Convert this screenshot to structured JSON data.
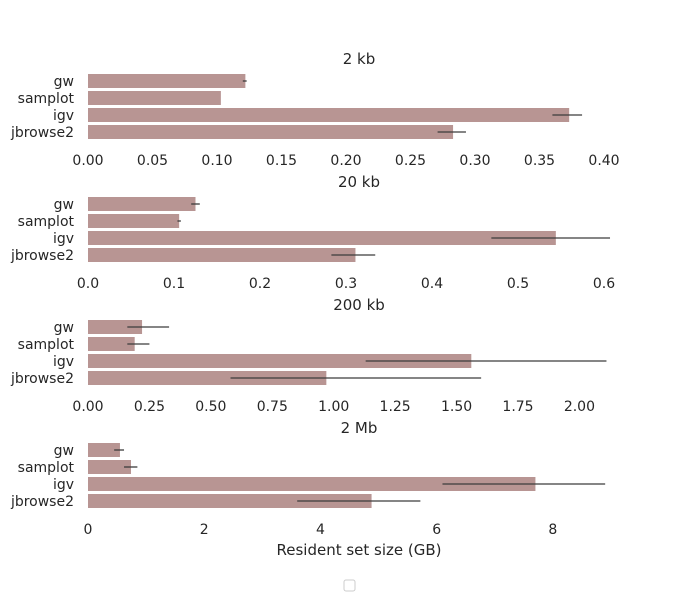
{
  "chart_data": [
    {
      "type": "bar",
      "orientation": "horizontal",
      "title": "2 kb",
      "categories": [
        "gw",
        "samplot",
        "igv",
        "jbrowse2"
      ],
      "values": [
        0.122,
        0.103,
        0.373,
        0.283
      ],
      "error": [
        [
          0.12,
          0.123
        ],
        [
          0.103,
          0.103
        ],
        [
          0.36,
          0.383
        ],
        [
          0.271,
          0.293
        ]
      ],
      "xlim": [
        0,
        0.4
      ],
      "xticks": [
        "0.00",
        "0.05",
        "0.10",
        "0.15",
        "0.20",
        "0.25",
        "0.30",
        "0.35",
        "0.40"
      ],
      "xtick_values": [
        0,
        0.05,
        0.1,
        0.15,
        0.2,
        0.25,
        0.3,
        0.35,
        0.4
      ],
      "xlabel": "",
      "color": "#b89593"
    },
    {
      "type": "bar",
      "orientation": "horizontal",
      "title": "20 kb",
      "categories": [
        "gw",
        "samplot",
        "igv",
        "jbrowse2"
      ],
      "values": [
        0.125,
        0.106,
        0.544,
        0.311
      ],
      "error": [
        [
          0.12,
          0.13
        ],
        [
          0.104,
          0.108
        ],
        [
          0.469,
          0.607
        ],
        [
          0.283,
          0.334
        ]
      ],
      "xlim": [
        0,
        0.6
      ],
      "xticks": [
        "0.0",
        "0.1",
        "0.2",
        "0.3",
        "0.4",
        "0.5",
        "0.6"
      ],
      "xtick_values": [
        0,
        0.1,
        0.2,
        0.3,
        0.4,
        0.5,
        0.6
      ],
      "xlabel": "",
      "color": "#b89593"
    },
    {
      "type": "bar",
      "orientation": "horizontal",
      "title": "200 kb",
      "categories": [
        "gw",
        "samplot",
        "igv",
        "jbrowse2"
      ],
      "values": [
        0.22,
        0.19,
        1.56,
        0.97
      ],
      "error": [
        [
          0.16,
          0.33
        ],
        [
          0.16,
          0.25
        ],
        [
          1.13,
          2.11
        ],
        [
          0.58,
          1.6
        ]
      ],
      "xlim": [
        0,
        2.1
      ],
      "xticks": [
        "0.00",
        "0.25",
        "0.50",
        "0.75",
        "1.00",
        "1.25",
        "1.50",
        "1.75",
        "2.00"
      ],
      "xtick_values": [
        0,
        0.25,
        0.5,
        0.75,
        1.0,
        1.25,
        1.5,
        1.75,
        2.0
      ],
      "xlabel": "",
      "color": "#b89593"
    },
    {
      "type": "bar",
      "orientation": "horizontal",
      "title": "2 Mb",
      "categories": [
        "gw",
        "samplot",
        "igv",
        "jbrowse2"
      ],
      "values": [
        0.55,
        0.74,
        7.7,
        4.88
      ],
      "error": [
        [
          0.45,
          0.62
        ],
        [
          0.62,
          0.85
        ],
        [
          6.1,
          8.9
        ],
        [
          3.6,
          5.72
        ]
      ],
      "xlim": [
        0,
        8.88
      ],
      "xticks": [
        "0",
        "2",
        "4",
        "6",
        "8"
      ],
      "xtick_values": [
        0,
        2,
        4,
        6,
        8
      ],
      "xlabel": "Resident set size (GB)",
      "color": "#b89593"
    }
  ],
  "legend": {
    "entries": [],
    "placement": "bottom-center"
  },
  "colors": {
    "bar": "#b89593",
    "errorbar": "#3c3c3c",
    "text": "#262626"
  }
}
